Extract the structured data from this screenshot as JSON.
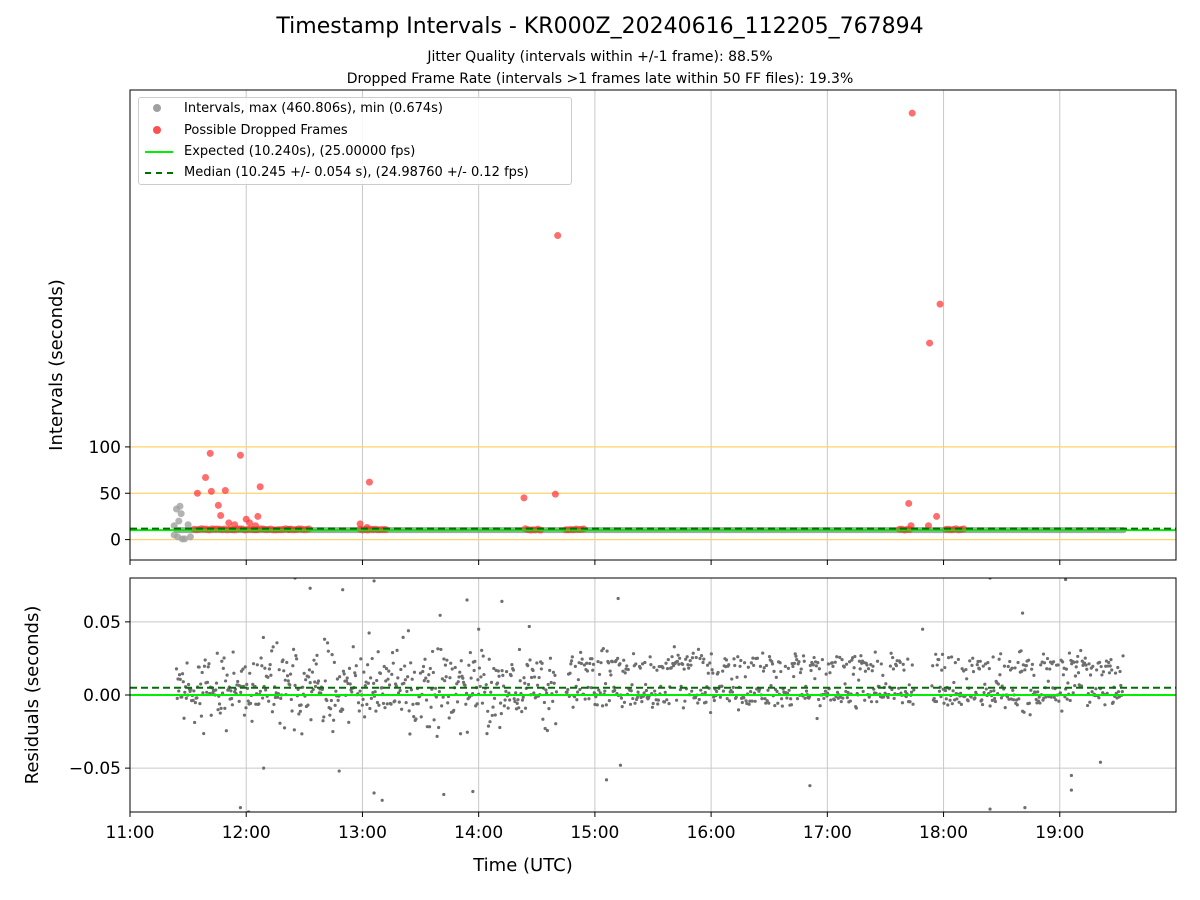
{
  "title": "Timestamp Intervals - KR000Z_20240616_112205_767894",
  "subtitle1": "Jitter Quality (intervals within +/-1 frame): 88.5%",
  "subtitle2": "Dropped Frame Rate (intervals >1 frames late within 50 FF files): 19.3%",
  "colors": {
    "intervals": "#808080",
    "dropped": "#ff0000",
    "expected": "#00ee00",
    "median": "#007000",
    "hlines": "#ffd36b",
    "grid": "#c8c8c8"
  },
  "legend": {
    "intervals": "Intervals, max (460.806s), min (0.674s)",
    "dropped": "Possible Dropped Frames",
    "expected": "Expected (10.240s), (25.00000 fps)",
    "median": "Median (10.245 +/- 0.054 s), (24.98760 +/- 0.12 fps)"
  },
  "chart_data": [
    {
      "type": "scatter",
      "ylabel": "Intervals (seconds)",
      "xlim": [
        "11:00",
        "20:00"
      ],
      "ylim": [
        -22,
        485
      ],
      "yticks": [
        0,
        50,
        100
      ],
      "xticks": [
        "11:00",
        "12:00",
        "13:00",
        "14:00",
        "15:00",
        "16:00",
        "17:00",
        "18:00",
        "19:00"
      ],
      "grid": "x",
      "legend_position": "top-left",
      "expected": 10.24,
      "median": 10.245,
      "hlines": [
        0,
        50,
        100
      ],
      "x_range_hours": [
        11.4,
        19.55
      ],
      "series": [
        {
          "name": "Intervals, max (460.806s), min (0.674s)",
          "points": [
            [
              11.38,
              15
            ],
            [
              11.4,
              33
            ],
            [
              11.42,
              20
            ],
            [
              11.43,
              36
            ],
            [
              11.44,
              28
            ],
            [
              11.41,
              3
            ],
            [
              11.45,
              0.7
            ],
            [
              11.47,
              0.8
            ],
            [
              11.5,
              16
            ],
            [
              11.52,
              3
            ],
            [
              11.38,
              5
            ]
          ]
        },
        {
          "name": "Possible Dropped Frames",
          "points": [
            [
              11.58,
              50
            ],
            [
              11.65,
              67
            ],
            [
              11.69,
              93
            ],
            [
              11.7,
              52
            ],
            [
              11.76,
              37
            ],
            [
              11.78,
              26
            ],
            [
              11.82,
              53
            ],
            [
              11.85,
              18
            ],
            [
              11.95,
              91
            ],
            [
              12.0,
              22
            ],
            [
              12.1,
              25
            ],
            [
              12.12,
              57
            ],
            [
              12.08,
              15
            ],
            [
              11.9,
              16
            ],
            [
              12.03,
              18
            ],
            [
              12.37,
              11
            ],
            [
              12.98,
              17
            ],
            [
              13.04,
              13
            ],
            [
              13.06,
              62
            ],
            [
              14.39,
              45
            ],
            [
              14.66,
              49
            ],
            [
              14.68,
              328
            ],
            [
              17.7,
              39
            ],
            [
              17.73,
              460
            ],
            [
              17.72,
              15
            ],
            [
              17.87,
              15
            ],
            [
              17.88,
              212
            ],
            [
              17.94,
              25
            ],
            [
              17.97,
              254
            ]
          ]
        }
      ]
    },
    {
      "type": "scatter",
      "ylabel": "Residuals (seconds)",
      "xlabel": "Time (UTC)",
      "xlim": [
        "11:00",
        "20:00"
      ],
      "ylim": [
        -0.08,
        0.08
      ],
      "yticks": [
        -0.05,
        0.0,
        0.05
      ],
      "ytick_labels": [
        "−0.05",
        "0.00",
        "0.05"
      ],
      "xticks": [
        "11:00",
        "12:00",
        "13:00",
        "14:00",
        "15:00",
        "16:00",
        "17:00",
        "18:00",
        "19:00"
      ],
      "grid": "both",
      "expected_residual": 0.0,
      "median_residual": 0.005,
      "gaps_hours": [
        [
          14.67,
          14.75
        ],
        [
          17.75,
          17.9
        ]
      ],
      "outliers": [
        [
          11.95,
          -0.077
        ],
        [
          12.02,
          -0.08
        ],
        [
          12.15,
          -0.05
        ],
        [
          12.42,
          0.08
        ],
        [
          12.55,
          0.073
        ],
        [
          12.83,
          0.072
        ],
        [
          12.8,
          -0.052
        ],
        [
          13.1,
          0.078
        ],
        [
          13.1,
          -0.067
        ],
        [
          13.17,
          -0.072
        ],
        [
          13.7,
          -0.068
        ],
        [
          13.9,
          0.065
        ],
        [
          13.95,
          -0.066
        ],
        [
          14.0,
          0.045
        ],
        [
          14.2,
          0.064
        ],
        [
          15.2,
          0.066
        ],
        [
          15.1,
          -0.058
        ],
        [
          15.22,
          -0.048
        ],
        [
          16.85,
          -0.062
        ],
        [
          17.82,
          0.045
        ],
        [
          18.4,
          0.08
        ],
        [
          18.4,
          -0.078
        ],
        [
          18.68,
          0.056
        ],
        [
          18.7,
          -0.077
        ],
        [
          18.86,
          0.028
        ],
        [
          19.05,
          0.079
        ],
        [
          19.1,
          -0.055
        ],
        [
          19.1,
          -0.065
        ],
        [
          19.35,
          -0.046
        ]
      ]
    }
  ]
}
